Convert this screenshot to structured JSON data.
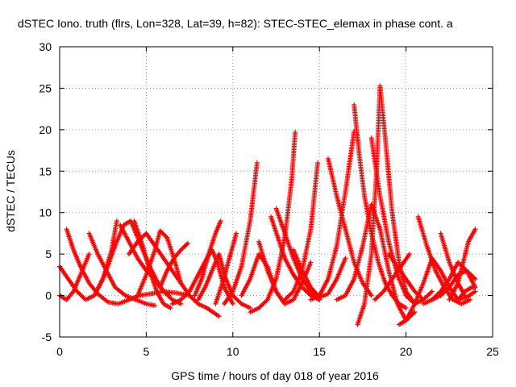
{
  "chart_data": {
    "type": "scatter",
    "title": "dSTEC Iono. truth (flrs, Lon=328, Lat=39, h=82): STEC-STEC_elemax in phase cont. a",
    "xlabel": "GPS time / hours of day 018 of year 2016",
    "ylabel": "dSTEC  / TECUs",
    "xlim": [
      0,
      25
    ],
    "ylim": [
      -5,
      30
    ],
    "xticks": [
      0,
      5,
      10,
      15,
      20,
      25
    ],
    "yticks": [
      -5,
      0,
      5,
      10,
      15,
      20,
      25,
      30
    ],
    "grid": true,
    "marker": "plus",
    "color": "#ff0000",
    "series": [
      {
        "x": [
          0.0,
          0.5,
          1.0,
          1.5,
          2.0,
          2.5,
          3.0,
          3.3
        ],
        "y": [
          3.5,
          2.0,
          0.5,
          -0.5,
          0.0,
          2.0,
          5.5,
          9.0
        ]
      },
      {
        "x": [
          0.0,
          0.4,
          0.8,
          1.2,
          1.7
        ],
        "y": [
          0.0,
          -0.5,
          0.5,
          2.5,
          5.0
        ]
      },
      {
        "x": [
          0.4,
          0.8,
          1.2,
          1.7,
          2.2,
          2.8,
          3.4,
          4.0,
          4.6,
          5.2,
          6.0,
          6.8,
          7.5
        ],
        "y": [
          8.0,
          5.5,
          3.5,
          1.5,
          0.2,
          -0.8,
          -1.0,
          -0.5,
          0.0,
          0.2,
          0.5,
          0.3,
          0.0
        ]
      },
      {
        "x": [
          1.7,
          2.2,
          2.7,
          3.2,
          3.8,
          4.4,
          5.0,
          5.5
        ],
        "y": [
          7.5,
          5.0,
          3.0,
          1.0,
          0.0,
          -0.5,
          -1.0,
          -1.2
        ]
      },
      {
        "x": [
          2.0,
          2.6,
          3.2,
          3.7,
          4.1,
          4.6,
          5.2,
          5.8,
          6.3
        ],
        "y": [
          0.0,
          2.5,
          6.0,
          8.5,
          9.0,
          6.5,
          3.5,
          1.0,
          0.0
        ]
      },
      {
        "x": [
          3.5,
          4.0,
          4.5,
          5.0,
          5.5,
          6.0,
          6.5,
          7.0
        ],
        "y": [
          8.5,
          6.5,
          4.5,
          3.0,
          2.0,
          0.5,
          -0.5,
          -1.0
        ]
      },
      {
        "x": [
          4.0,
          4.5,
          5.0,
          5.5,
          6.0,
          6.5,
          7.0,
          7.5,
          8.0,
          8.5,
          9.2
        ],
        "y": [
          5.0,
          6.5,
          7.5,
          6.0,
          4.5,
          3.0,
          1.5,
          0.0,
          -1.0,
          -1.5,
          -2.5
        ]
      },
      {
        "x": [
          4.3,
          4.8,
          5.2,
          5.6,
          6.0,
          6.4
        ],
        "y": [
          9.0,
          6.0,
          3.0,
          0.5,
          -1.0,
          -1.5
        ]
      },
      {
        "x": [
          4.5,
          5.0,
          5.5,
          5.8,
          6.2,
          6.6,
          7.0
        ],
        "y": [
          0.0,
          2.5,
          5.5,
          7.8,
          7.0,
          4.5,
          1.5
        ]
      },
      {
        "x": [
          5.8,
          6.2,
          6.6,
          7.0,
          7.4
        ],
        "y": [
          1.0,
          3.0,
          4.5,
          5.5,
          6.3
        ]
      },
      {
        "x": [
          6.5,
          7.0,
          7.5,
          8.0,
          8.5,
          8.8,
          9.1,
          9.5,
          10.0
        ],
        "y": [
          -1.0,
          -0.5,
          0.5,
          2.5,
          4.5,
          5.5,
          4.0,
          1.0,
          -1.0
        ]
      },
      {
        "x": [
          7.8,
          8.2,
          8.6,
          9.0,
          9.3
        ],
        "y": [
          0.0,
          2.0,
          5.0,
          7.5,
          9.0
        ]
      },
      {
        "x": [
          8.0,
          8.4,
          8.8,
          9.2,
          9.6,
          10.0,
          10.5,
          11.0
        ],
        "y": [
          -0.5,
          1.0,
          3.0,
          5.0,
          2.0,
          0.0,
          -1.0,
          -1.5
        ]
      },
      {
        "x": [
          9.0,
          9.4,
          9.8,
          10.2
        ],
        "y": [
          -1.0,
          1.5,
          4.5,
          7.5
        ]
      },
      {
        "x": [
          9.5,
          10.0,
          10.5,
          11.0,
          11.4
        ],
        "y": [
          -1.0,
          0.5,
          3.5,
          9.0,
          16.0
        ]
      },
      {
        "x": [
          10.5,
          11.0,
          11.5,
          12.0,
          12.5,
          13.0
        ],
        "y": [
          0.0,
          2.0,
          5.0,
          3.5,
          0.5,
          -1.0
        ]
      },
      {
        "x": [
          11.5,
          12.0,
          12.5,
          13.0,
          13.5,
          14.0,
          14.5
        ],
        "y": [
          6.5,
          3.0,
          0.5,
          -1.0,
          -0.5,
          1.5,
          4.0
        ]
      },
      {
        "x": [
          11.0,
          11.5,
          12.0,
          12.5,
          13.0,
          13.4,
          13.6
        ],
        "y": [
          -2.0,
          -1.5,
          -0.5,
          2.0,
          7.0,
          14.0,
          19.7
        ]
      },
      {
        "x": [
          12.2,
          12.6,
          13.0,
          13.5,
          14.0,
          14.5,
          15.0
        ],
        "y": [
          9.5,
          7.0,
          4.5,
          2.5,
          1.0,
          0.0,
          -0.5
        ]
      },
      {
        "x": [
          12.5,
          13.0,
          13.5,
          14.0,
          14.5,
          15.0
        ],
        "y": [
          10.5,
          7.5,
          4.5,
          2.0,
          0.5,
          -0.5
        ]
      },
      {
        "x": [
          13.0,
          13.5,
          14.0,
          14.5,
          14.9
        ],
        "y": [
          -0.5,
          0.5,
          3.0,
          8.0,
          16.0
        ]
      },
      {
        "x": [
          13.5,
          14.0,
          14.5,
          15.0,
          15.5,
          16.0,
          16.5
        ],
        "y": [
          5.5,
          3.0,
          1.0,
          -0.2,
          0.2,
          2.0,
          4.5
        ]
      },
      {
        "x": [
          14.5,
          15.0,
          15.5,
          16.0,
          16.5,
          17.0
        ],
        "y": [
          -0.5,
          0.0,
          2.0,
          6.0,
          12.5,
          19.8
        ]
      },
      {
        "x": [
          15.5,
          16.0,
          16.5,
          17.0,
          17.5,
          18.0
        ],
        "y": [
          16.5,
          12.0,
          8.0,
          4.0,
          1.5,
          0.0
        ]
      },
      {
        "x": [
          16.0,
          16.5,
          17.0,
          17.5,
          18.0,
          18.5,
          19.0,
          19.5,
          20.0,
          20.5
        ],
        "y": [
          -0.5,
          0.0,
          2.0,
          6.0,
          11.0,
          8.0,
          3.0,
          -1.0,
          -3.0,
          -2.0
        ]
      },
      {
        "x": [
          17.0,
          17.3,
          17.6,
          18.0,
          18.4,
          18.8,
          19.2,
          19.6,
          20.0
        ],
        "y": [
          23.0,
          17.0,
          12.0,
          7.5,
          4.0,
          1.5,
          0.0,
          -1.0,
          -1.5
        ]
      },
      {
        "x": [
          17.2,
          17.6,
          18.0,
          18.3,
          18.5,
          18.8,
          19.2,
          19.6,
          20.0,
          20.5
        ],
        "y": [
          -3.5,
          -1.0,
          5.0,
          15.0,
          25.3,
          19.0,
          10.0,
          4.0,
          0.5,
          -1.0
        ]
      },
      {
        "x": [
          18.0,
          18.5,
          19.0,
          19.5,
          20.0,
          20.5,
          21.0,
          21.5
        ],
        "y": [
          19.0,
          12.0,
          6.5,
          2.5,
          0.0,
          -1.0,
          -0.5,
          0.5
        ]
      },
      {
        "x": [
          18.2,
          18.7,
          19.2,
          19.7,
          20.2
        ],
        "y": [
          -0.5,
          0.5,
          2.0,
          3.5,
          5.0
        ]
      },
      {
        "x": [
          19.0,
          19.5,
          20.0,
          20.5,
          21.0
        ],
        "y": [
          5.0,
          3.5,
          2.0,
          0.5,
          -0.5
        ]
      },
      {
        "x": [
          19.6,
          20.0,
          20.5,
          21.0,
          21.5,
          22.0,
          22.5,
          23.0,
          23.5,
          24.0
        ],
        "y": [
          -3.5,
          -3.0,
          -1.0,
          1.5,
          4.5,
          3.0,
          1.0,
          -0.5,
          -0.2,
          0.5
        ]
      },
      {
        "x": [
          20.7,
          21.2,
          21.7,
          22.2,
          22.7,
          23.2,
          23.7
        ],
        "y": [
          9.5,
          6.0,
          3.0,
          1.0,
          -0.5,
          -1.0,
          -0.5
        ]
      },
      {
        "x": [
          21.0,
          21.5,
          22.0,
          22.5,
          23.0,
          23.5,
          24.0
        ],
        "y": [
          -1.0,
          -0.5,
          0.0,
          1.0,
          2.5,
          3.0,
          2.0
        ]
      },
      {
        "x": [
          21.5,
          22.0,
          22.5,
          23.0,
          23.5,
          24.0
        ],
        "y": [
          -0.5,
          0.5,
          2.0,
          4.0,
          3.0,
          1.0
        ]
      },
      {
        "x": [
          22.0,
          22.5,
          23.0,
          23.4
        ],
        "y": [
          7.5,
          4.0,
          1.5,
          0.0
        ]
      },
      {
        "x": [
          22.5,
          23.0,
          23.3,
          23.6,
          24.0
        ],
        "y": [
          -0.5,
          1.5,
          4.0,
          6.5,
          8.0
        ]
      },
      {
        "x": [
          23.0,
          23.4,
          23.8,
          24.0
        ],
        "y": [
          -0.5,
          0.5,
          1.0,
          1.0
        ]
      }
    ]
  }
}
